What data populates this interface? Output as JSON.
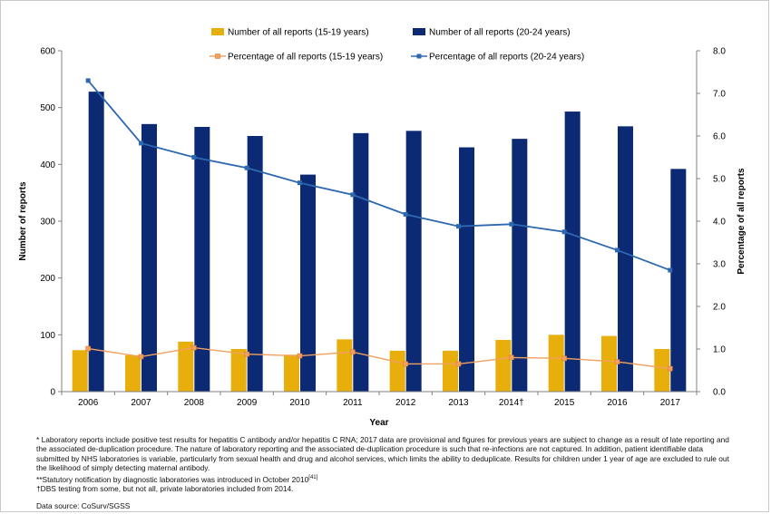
{
  "chart_data": {
    "type": "bar",
    "categories": [
      "2006",
      "2007",
      "2008",
      "2009",
      "2010",
      "2011",
      "2012",
      "2013",
      "2014†",
      "2015",
      "2016",
      "2017"
    ],
    "series": [
      {
        "name": "Number of all reports (15-19 years)",
        "kind": "bar",
        "axis": "left",
        "color": "#e8ae0c",
        "values": [
          73,
          64,
          88,
          75,
          65,
          92,
          72,
          72,
          91,
          100,
          98,
          75
        ]
      },
      {
        "name": "Number of all reports (20-24 years)",
        "kind": "bar",
        "axis": "left",
        "color": "#0b2a73",
        "values": [
          528,
          471,
          466,
          450,
          382,
          455,
          459,
          430,
          445,
          493,
          467,
          392
        ]
      },
      {
        "name": "Percentage of all reports (15-19 years)",
        "kind": "line",
        "axis": "right",
        "color": "#f0a060",
        "values": [
          1.01,
          0.82,
          1.03,
          0.88,
          0.84,
          0.93,
          0.65,
          0.65,
          0.8,
          0.78,
          0.7,
          0.54
        ]
      },
      {
        "name": "Percentage of all reports (20-24 years)",
        "kind": "line",
        "axis": "right",
        "color": "#2d68b0",
        "values": [
          7.3,
          5.83,
          5.5,
          5.25,
          4.9,
          4.62,
          4.16,
          3.88,
          3.93,
          3.75,
          3.32,
          2.85
        ]
      }
    ],
    "xlabel": "Year",
    "ylabel": "Number of reports",
    "y2label": "Percentage of all reports",
    "ylim": [
      0,
      600
    ],
    "yticks": [
      "0",
      "100",
      "200",
      "300",
      "400",
      "500",
      "600"
    ],
    "y2lim": [
      0,
      8
    ],
    "y2ticks": [
      "0.0",
      "1.0",
      "2.0",
      "3.0",
      "4.0",
      "5.0",
      "6.0",
      "7.0",
      "8.0"
    ],
    "grid": false,
    "legend_position": "top"
  },
  "footnotes": {
    "note1": "* Laboratory reports include positive test results for hepatitis C antibody and/or hepatitis C RNA; 2017 data are provisional and figures for previous years are subject to change as a result of late reporting and the associated de-duplication procedure. The nature of laboratory reporting and the associated de-duplication procedure is such that re-infections are not captured. In addition, patient identifiable data submitted by NHS laboratories is variable, particularly from sexual health and drug and alcohol services, which limits the ability to deduplicate. Results for children under 1 year of age are excluded to rule out the likelihood of simply detecting maternal antibody.",
    "note2": "**Statutory notification by diagnostic laboratories was introduced in October 2010",
    "note2_ref": "[41]",
    "note3": "†DBS testing from some, but not all, private laboratories included from 2014.",
    "source": "Data source: CoSurv/SGSS"
  }
}
